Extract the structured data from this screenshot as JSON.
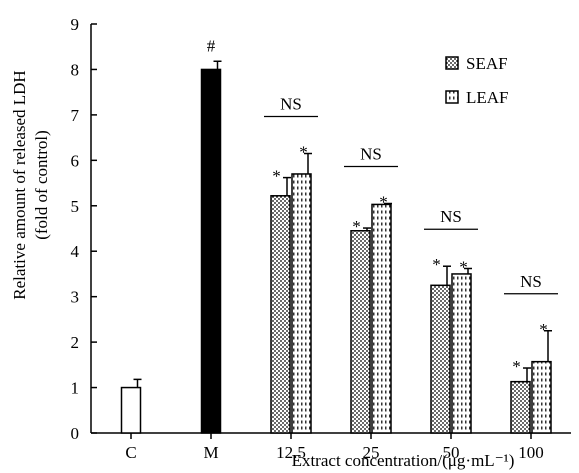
{
  "chart_data": {
    "type": "bar",
    "title": "",
    "ylabel_lines": [
      "Relative amount of released LDH",
      "(fold of control)"
    ],
    "xlabel": "Extract concentration/(μg·mL⁻¹)",
    "ylim": [
      0,
      9
    ],
    "yticks": [
      0,
      1,
      2,
      3,
      4,
      5,
      6,
      7,
      8,
      9
    ],
    "grid": false,
    "legend_position": "top-right",
    "categories": [
      "C",
      "M",
      "12.5",
      "25",
      "50",
      "100"
    ],
    "controls": [
      {
        "category": "C",
        "value": 1.0,
        "error": 0.18,
        "color": "#ffffff",
        "marker": ""
      },
      {
        "category": "M",
        "value": 8.0,
        "error": 0.18,
        "color": "#000000",
        "marker": "#"
      }
    ],
    "series": [
      {
        "name": "SEAF",
        "pattern": "dots",
        "category_values": {
          "12.5": 5.22,
          "25": 4.45,
          "50": 3.25,
          "100": 1.13
        },
        "errors": {
          "12.5": 0.4,
          "25": 0.06,
          "50": 0.42,
          "100": 0.3
        },
        "markers": {
          "12.5": "*",
          "25": "*",
          "50": "*",
          "100": "*"
        }
      },
      {
        "name": "LEAF",
        "pattern": "dashes",
        "category_values": {
          "12.5": 5.7,
          "25": 5.03,
          "50": 3.5,
          "100": 1.57
        },
        "errors": {
          "12.5": 0.45,
          "25": 0.02,
          "50": 0.12,
          "100": 0.68
        },
        "markers": {
          "12.5": "*",
          "25": "*",
          "50": "*",
          "100": "*"
        }
      }
    ],
    "group_annotation": "NS",
    "bracket_categories": [
      "12.5",
      "25",
      "50",
      "100"
    ]
  }
}
